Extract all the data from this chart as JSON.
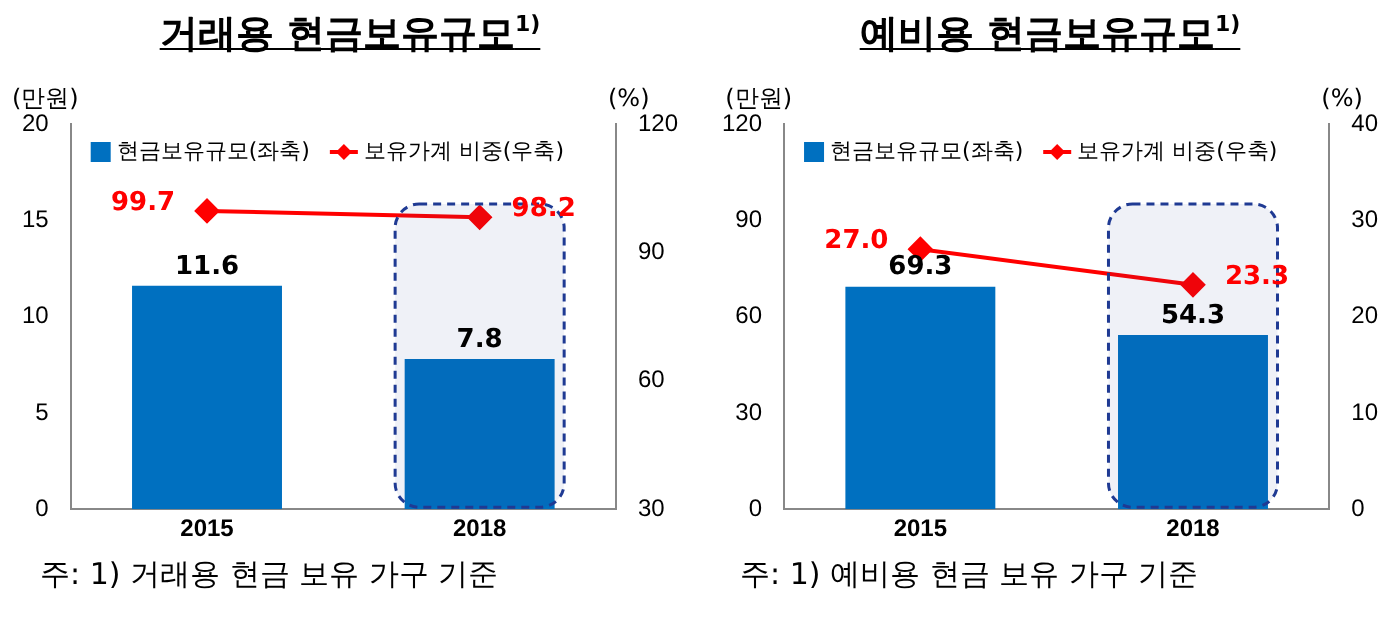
{
  "chart_data": [
    {
      "type": "bar",
      "title": "거래용  현금보유규모$^{1)}$",
      "ylabel": "(만원)",
      "y2label": "(%)",
      "categories": [
        "2015",
        "2018"
      ],
      "legend": "top",
      "marker": "diamond",
      "series": [
        {
          "name": "현금보유규모(좌축)",
          "type": "bar",
          "color": "#0070c0",
          "values": [
            11.6,
            7.8
          ],
          "value_labels": [
            "11.6",
            "7.8"
          ]
        },
        {
          "name": "보유가계 비중(우축)",
          "type": "line",
          "axis": "y2",
          "color": "#ff0000",
          "values": [
            99.7,
            98.2
          ],
          "value_labels": [
            "99.7",
            "98.2"
          ]
        }
      ],
      "ylim": [
        0,
        20
      ],
      "yticks": [
        0,
        5,
        10,
        15,
        20
      ],
      "y2lim": [
        30,
        120
      ],
      "y2ticks": [
        30,
        60,
        90,
        120
      ],
      "bands": [
        {
          "axis": "x",
          "from": "2018",
          "to": "2018",
          "color": "#1f3a93"
        }
      ],
      "annotations": [
        "주: 1) 거래용 현금 보유 가구 기준"
      ]
    },
    {
      "type": "bar",
      "title": "예비용  현금보유규모$^{1)}$",
      "ylabel": "(만원)",
      "y2label": "(%)",
      "categories": [
        "2015",
        "2018"
      ],
      "legend": "top",
      "marker": "diamond",
      "series": [
        {
          "name": "현금보유규모(좌축)",
          "type": "bar",
          "color": "#0070c0",
          "values": [
            69.3,
            54.3
          ],
          "value_labels": [
            "69.3",
            "54.3"
          ]
        },
        {
          "name": "보유가계 비중(우축)",
          "type": "line",
          "axis": "y2",
          "color": "#ff0000",
          "values": [
            27.0,
            23.3
          ],
          "value_labels": [
            "27.0",
            "23.3"
          ]
        }
      ],
      "ylim": [
        0,
        120
      ],
      "yticks": [
        0,
        30,
        60,
        90,
        120
      ],
      "y2lim": [
        0,
        40
      ],
      "y2ticks": [
        0,
        10,
        20,
        30,
        40
      ],
      "bands": [
        {
          "axis": "x",
          "from": "2018",
          "to": "2018",
          "color": "#1f3a93"
        }
      ],
      "annotations": [
        "주: 1) 예비용 현금 보유 가구 기준"
      ]
    }
  ]
}
